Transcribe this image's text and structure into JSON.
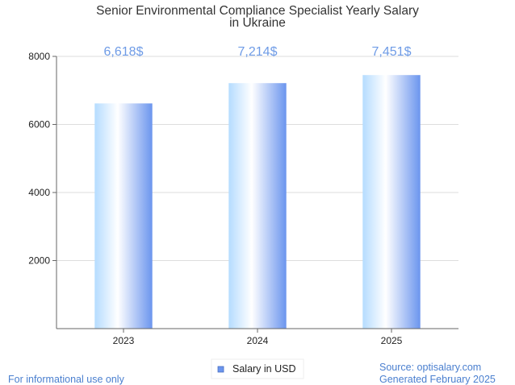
{
  "chart_data": {
    "type": "bar",
    "title_lines": [
      "Senior Environmental Compliance Specialist Yearly Salary",
      "in Ukraine"
    ],
    "categories": [
      "2023",
      "2024",
      "2025"
    ],
    "series": [
      {
        "name": "Salary in USD",
        "values": [
          6618,
          7214,
          7451
        ]
      }
    ],
    "data_labels": [
      "6,618$",
      "7,214$",
      "7,451$"
    ],
    "yticks": [
      "2000",
      "4000",
      "6000",
      "8000"
    ],
    "ylim": [
      0,
      8000
    ],
    "grid": true,
    "legend_position": "bottom-center",
    "colors": {
      "bar_light": "#ffffff",
      "bar_mid": "#b5dcff",
      "bar_dark": "#6b95ee",
      "label": "#6e9be6",
      "grid": "#dddddd",
      "axis": "#666666"
    }
  },
  "footer": {
    "left": "For informational use only",
    "source": "Source: optisalary.com",
    "generated": "Generated February 2025"
  }
}
